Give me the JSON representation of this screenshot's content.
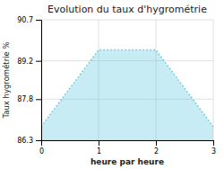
{
  "chart_data": {
    "type": "area",
    "title": "Evolution du taux d'hygrométrie",
    "xlabel": "heure par heure",
    "ylabel": "Taux hygrométrie %",
    "x": [
      0,
      1,
      2,
      3
    ],
    "values": [
      86.8,
      89.6,
      89.6,
      86.8
    ],
    "color": "#60c8e0",
    "line_style": "dotted",
    "xlim": [
      0,
      3
    ],
    "ylim": [
      86.3,
      90.7
    ],
    "xticks": [
      0,
      1,
      2,
      3
    ],
    "yticks": [
      86.3,
      87.8,
      89.2,
      90.7
    ],
    "grid": true
  }
}
